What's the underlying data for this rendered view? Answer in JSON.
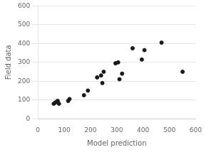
{
  "chart_data": {
    "type": "scatter",
    "x": [
      60,
      65,
      70,
      75,
      80,
      115,
      120,
      175,
      190,
      225,
      240,
      245,
      250,
      295,
      305,
      310,
      320,
      360,
      395,
      405,
      470,
      550
    ],
    "values": [
      80,
      85,
      90,
      95,
      80,
      95,
      105,
      125,
      150,
      220,
      230,
      190,
      250,
      295,
      300,
      210,
      240,
      375,
      315,
      365,
      405,
      250
    ],
    "xlabel": "Model prediction",
    "ylabel": "Field data",
    "xlim": [
      0,
      600
    ],
    "ylim": [
      0,
      600
    ],
    "xticks": [
      0,
      100,
      200,
      300,
      400,
      500,
      600
    ],
    "yticks": [
      0,
      100,
      200,
      300,
      400,
      500,
      600
    ],
    "color": "#1a1a1a",
    "grid": "y"
  }
}
